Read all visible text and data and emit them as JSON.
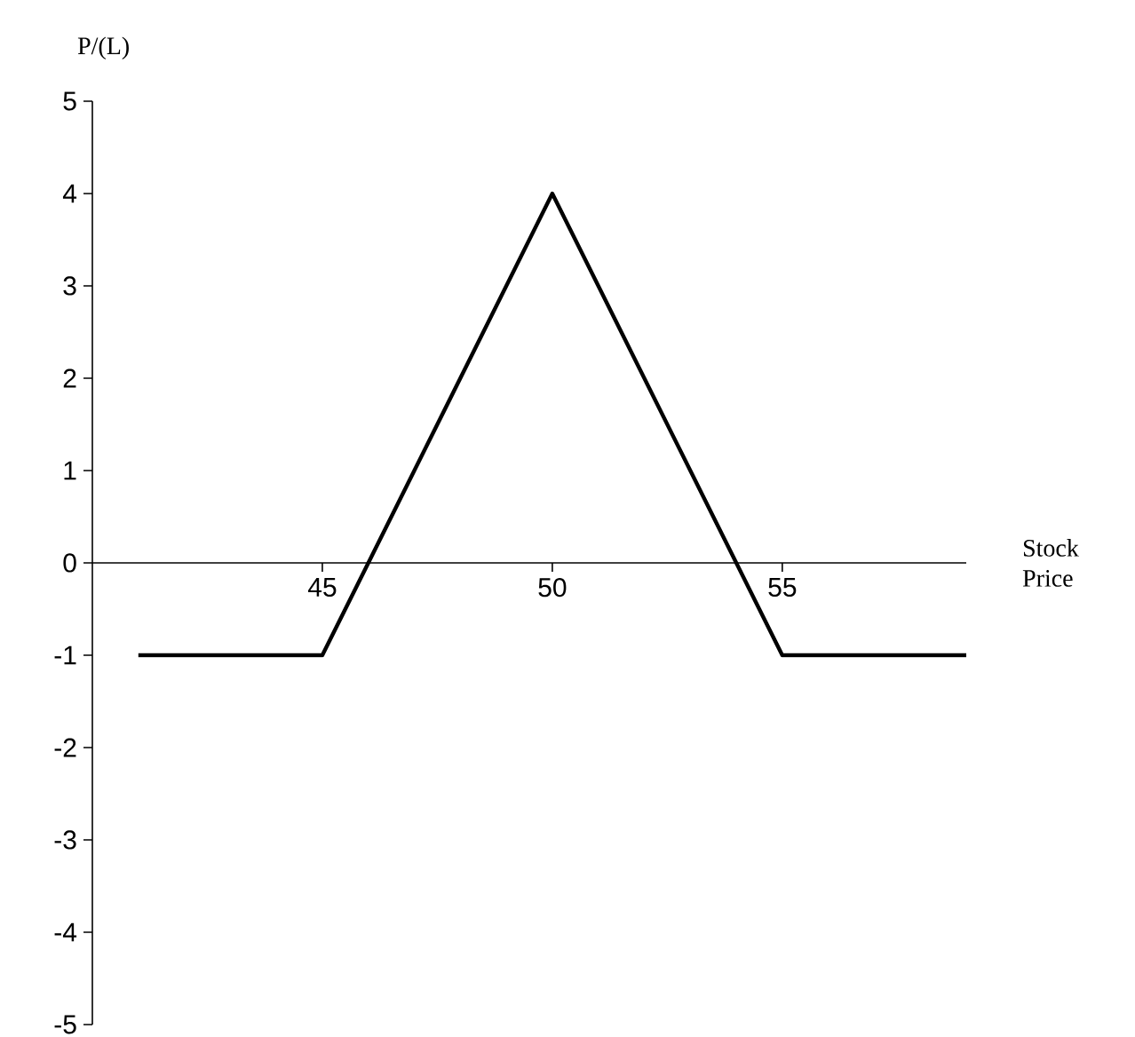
{
  "chart_data": {
    "type": "line",
    "xlabel": "Stock Price",
    "ylabel": "P/(L)",
    "x": [
      41,
      45,
      47,
      48,
      50,
      52,
      53,
      55,
      59
    ],
    "series": [
      {
        "color": "#000000",
        "values": [
          -1,
          -1,
          1,
          2,
          4,
          2,
          1,
          -1,
          -1
        ]
      }
    ],
    "xlim": [
      40,
      59
    ],
    "ylim": [
      -5,
      5
    ],
    "xticks": [
      45,
      50,
      55
    ],
    "yticks": [
      -5,
      -4,
      -3,
      -2,
      -1,
      0,
      1,
      2,
      3,
      4,
      5
    ],
    "grid": false,
    "marker": "none",
    "line_style": "solid"
  }
}
